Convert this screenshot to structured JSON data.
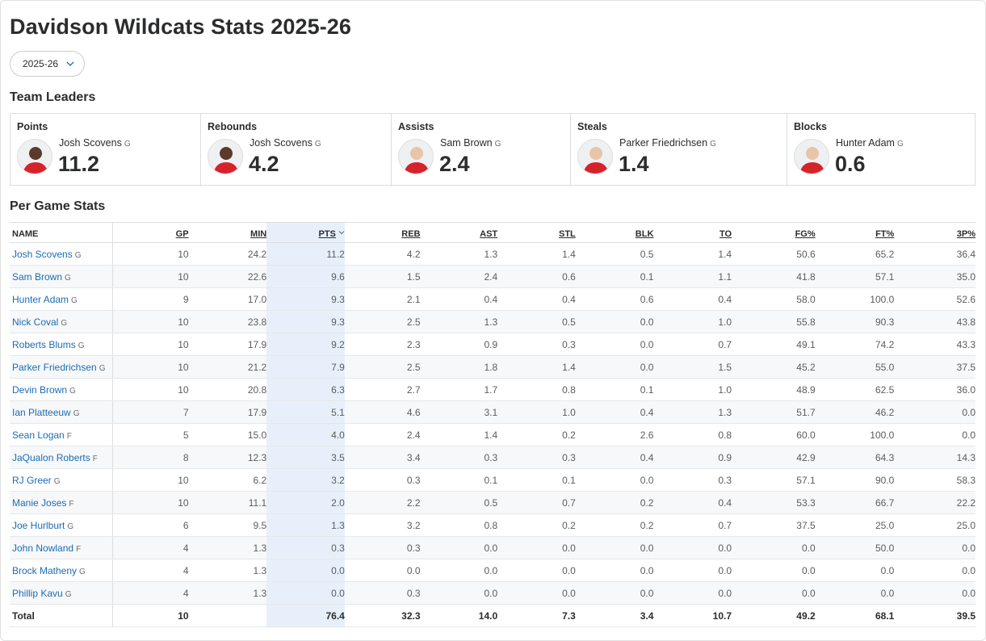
{
  "page": {
    "title": "Davidson Wildcats Stats 2025-26"
  },
  "season_select": {
    "value": "2025-26"
  },
  "leaders": {
    "title": "Team Leaders",
    "items": [
      {
        "category": "Points",
        "name": "Josh Scovens",
        "pos": "G",
        "value": "11.2"
      },
      {
        "category": "Rebounds",
        "name": "Josh Scovens",
        "pos": "G",
        "value": "4.2"
      },
      {
        "category": "Assists",
        "name": "Sam Brown",
        "pos": "G",
        "value": "2.4"
      },
      {
        "category": "Steals",
        "name": "Parker Friedrichsen",
        "pos": "G",
        "value": "1.4"
      },
      {
        "category": "Blocks",
        "name": "Hunter Adam",
        "pos": "G",
        "value": "0.6"
      }
    ]
  },
  "stats": {
    "title": "Per Game Stats",
    "columns": [
      "NAME",
      "GP",
      "MIN",
      "PTS",
      "REB",
      "AST",
      "STL",
      "BLK",
      "TO",
      "FG%",
      "FT%",
      "3P%"
    ],
    "rows": [
      {
        "name": "Josh Scovens",
        "pos": "G",
        "cells": [
          "10",
          "24.2",
          "11.2",
          "4.2",
          "1.3",
          "1.4",
          "0.5",
          "1.4",
          "50.6",
          "65.2",
          "36.4"
        ]
      },
      {
        "name": "Sam Brown",
        "pos": "G",
        "cells": [
          "10",
          "22.6",
          "9.6",
          "1.5",
          "2.4",
          "0.6",
          "0.1",
          "1.1",
          "41.8",
          "57.1",
          "35.0"
        ]
      },
      {
        "name": "Hunter Adam",
        "pos": "G",
        "cells": [
          "9",
          "17.0",
          "9.3",
          "2.1",
          "0.4",
          "0.4",
          "0.6",
          "0.4",
          "58.0",
          "100.0",
          "52.6"
        ]
      },
      {
        "name": "Nick Coval",
        "pos": "G",
        "cells": [
          "10",
          "23.8",
          "9.3",
          "2.5",
          "1.3",
          "0.5",
          "0.0",
          "1.0",
          "55.8",
          "90.3",
          "43.8"
        ]
      },
      {
        "name": "Roberts Blums",
        "pos": "G",
        "cells": [
          "10",
          "17.9",
          "9.2",
          "2.3",
          "0.9",
          "0.3",
          "0.0",
          "0.7",
          "49.1",
          "74.2",
          "43.3"
        ]
      },
      {
        "name": "Parker Friedrichsen",
        "pos": "G",
        "cells": [
          "10",
          "21.2",
          "7.9",
          "2.5",
          "1.8",
          "1.4",
          "0.0",
          "1.5",
          "45.2",
          "55.0",
          "37.5"
        ]
      },
      {
        "name": "Devin Brown",
        "pos": "G",
        "cells": [
          "10",
          "20.8",
          "6.3",
          "2.7",
          "1.7",
          "0.8",
          "0.1",
          "1.0",
          "48.9",
          "62.5",
          "36.0"
        ]
      },
      {
        "name": "Ian Platteeuw",
        "pos": "G",
        "cells": [
          "7",
          "17.9",
          "5.1",
          "4.6",
          "3.1",
          "1.0",
          "0.4",
          "1.3",
          "51.7",
          "46.2",
          "0.0"
        ]
      },
      {
        "name": "Sean Logan",
        "pos": "F",
        "cells": [
          "5",
          "15.0",
          "4.0",
          "2.4",
          "1.4",
          "0.2",
          "2.6",
          "0.8",
          "60.0",
          "100.0",
          "0.0"
        ]
      },
      {
        "name": "JaQualon Roberts",
        "pos": "F",
        "cells": [
          "8",
          "12.3",
          "3.5",
          "3.4",
          "0.3",
          "0.3",
          "0.4",
          "0.9",
          "42.9",
          "64.3",
          "14.3"
        ]
      },
      {
        "name": "RJ Greer",
        "pos": "G",
        "cells": [
          "10",
          "6.2",
          "3.2",
          "0.3",
          "0.1",
          "0.1",
          "0.0",
          "0.3",
          "57.1",
          "90.0",
          "58.3"
        ]
      },
      {
        "name": "Manie Joses",
        "pos": "F",
        "cells": [
          "10",
          "11.1",
          "2.0",
          "2.2",
          "0.5",
          "0.7",
          "0.2",
          "0.4",
          "53.3",
          "66.7",
          "22.2"
        ]
      },
      {
        "name": "Joe Hurlburt",
        "pos": "G",
        "cells": [
          "6",
          "9.5",
          "1.3",
          "3.2",
          "0.8",
          "0.2",
          "0.2",
          "0.7",
          "37.5",
          "25.0",
          "25.0"
        ]
      },
      {
        "name": "John Nowland",
        "pos": "F",
        "cells": [
          "4",
          "1.3",
          "0.3",
          "0.3",
          "0.0",
          "0.0",
          "0.0",
          "0.0",
          "0.0",
          "50.0",
          "0.0"
        ]
      },
      {
        "name": "Brock Matheny",
        "pos": "G",
        "cells": [
          "4",
          "1.3",
          "0.0",
          "0.0",
          "0.0",
          "0.0",
          "0.0",
          "0.0",
          "0.0",
          "0.0",
          "0.0"
        ]
      },
      {
        "name": "Phillip Kavu",
        "pos": "G",
        "cells": [
          "4",
          "1.3",
          "0.0",
          "0.3",
          "0.0",
          "0.0",
          "0.0",
          "0.0",
          "0.0",
          "0.0",
          "0.0"
        ]
      }
    ],
    "total": {
      "label": "Total",
      "cells": [
        "10",
        "",
        "76.4",
        "32.3",
        "14.0",
        "7.3",
        "3.4",
        "10.7",
        "49.2",
        "68.1",
        "39.5"
      ]
    }
  },
  "colors": {
    "link": "#1a6cb5",
    "highlight_column": "#e7f0fa",
    "jersey": "#d6232a"
  }
}
